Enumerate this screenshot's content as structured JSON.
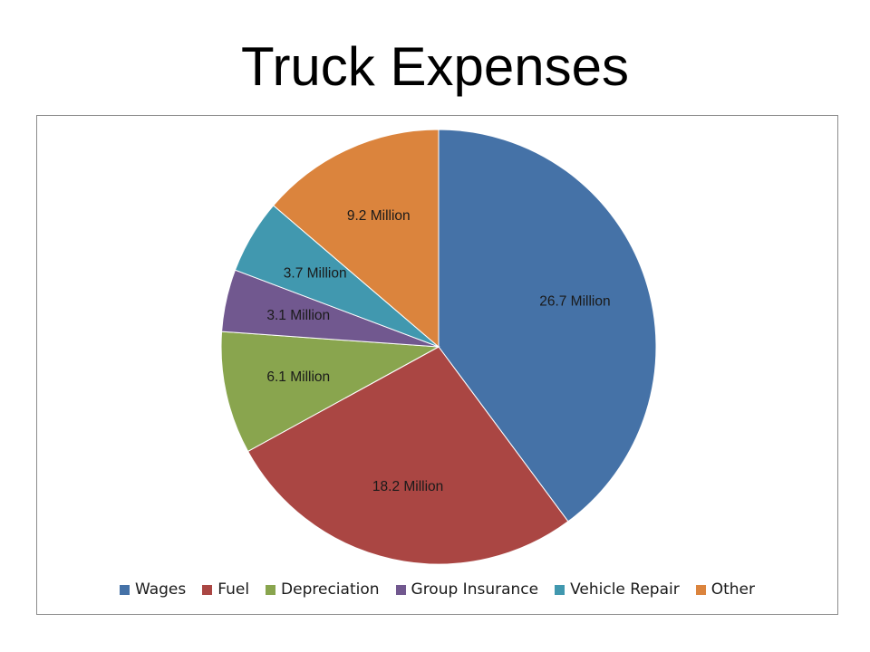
{
  "chart_data": {
    "type": "pie",
    "title": "Truck Expenses",
    "unit_suffix": " Million",
    "legend_position": "bottom",
    "slices": [
      {
        "label": "Wages",
        "value": 26.7,
        "value_label": "26.7 Million",
        "color": "#4572a7"
      },
      {
        "label": "Fuel",
        "value": 18.2,
        "value_label": "18.2 Million",
        "color": "#aa4643"
      },
      {
        "label": "Depreciation",
        "value": 6.1,
        "value_label": "6.1 Million",
        "color": "#89a54e"
      },
      {
        "label": "Group Insurance",
        "value": 3.1,
        "value_label": "3.1 Million",
        "color": "#71588f"
      },
      {
        "label": "Vehicle Repair",
        "value": 3.7,
        "value_label": "3.7 Million",
        "color": "#4198af"
      },
      {
        "label": "Other",
        "value": 9.2,
        "value_label": "9.2 Million",
        "color": "#db843d"
      }
    ]
  }
}
